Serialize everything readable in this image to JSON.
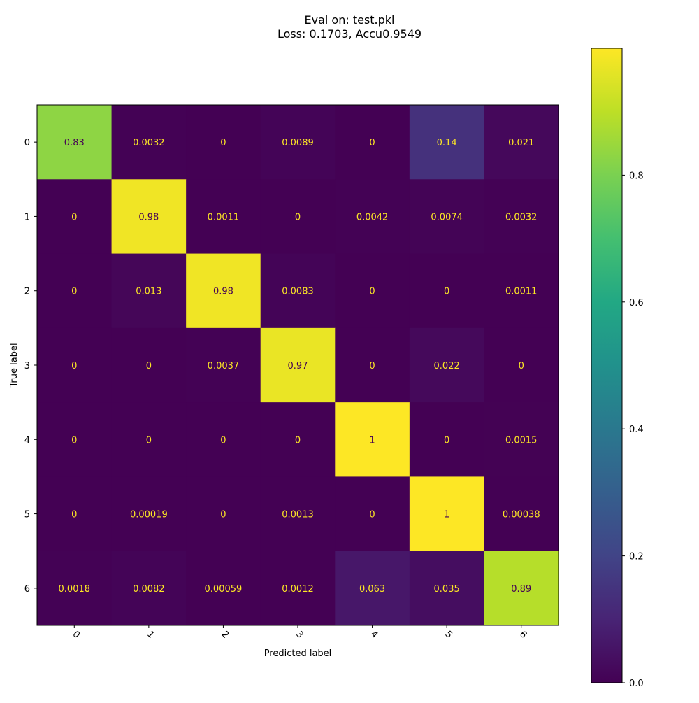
{
  "chart_data": {
    "type": "heatmap",
    "title_line1": "Eval on: test.pkl",
    "title_line2": "Loss: 0.1703, Accu0.9549",
    "xlabel": "Predicted label",
    "ylabel": "True label",
    "x_categories": [
      "0",
      "1",
      "2",
      "3",
      "4",
      "5",
      "6"
    ],
    "y_categories": [
      "0",
      "1",
      "2",
      "3",
      "4",
      "5",
      "6"
    ],
    "cells": [
      [
        {
          "v": 0.83,
          "t": "0.83"
        },
        {
          "v": 0.0032,
          "t": "0.0032"
        },
        {
          "v": 0,
          "t": "0"
        },
        {
          "v": 0.0089,
          "t": "0.0089"
        },
        {
          "v": 0,
          "t": "0"
        },
        {
          "v": 0.14,
          "t": "0.14"
        },
        {
          "v": 0.021,
          "t": "0.021"
        }
      ],
      [
        {
          "v": 0,
          "t": "0"
        },
        {
          "v": 0.98,
          "t": "0.98"
        },
        {
          "v": 0.0011,
          "t": "0.0011"
        },
        {
          "v": 0,
          "t": "0"
        },
        {
          "v": 0.0042,
          "t": "0.0042"
        },
        {
          "v": 0.0074,
          "t": "0.0074"
        },
        {
          "v": 0.0032,
          "t": "0.0032"
        }
      ],
      [
        {
          "v": 0,
          "t": "0"
        },
        {
          "v": 0.013,
          "t": "0.013"
        },
        {
          "v": 0.98,
          "t": "0.98"
        },
        {
          "v": 0.0083,
          "t": "0.0083"
        },
        {
          "v": 0,
          "t": "0"
        },
        {
          "v": 0,
          "t": "0"
        },
        {
          "v": 0.0011,
          "t": "0.0011"
        }
      ],
      [
        {
          "v": 0,
          "t": "0"
        },
        {
          "v": 0,
          "t": "0"
        },
        {
          "v": 0.0037,
          "t": "0.0037"
        },
        {
          "v": 0.97,
          "t": "0.97"
        },
        {
          "v": 0,
          "t": "0"
        },
        {
          "v": 0.022,
          "t": "0.022"
        },
        {
          "v": 0,
          "t": "0"
        }
      ],
      [
        {
          "v": 0,
          "t": "0"
        },
        {
          "v": 0,
          "t": "0"
        },
        {
          "v": 0,
          "t": "0"
        },
        {
          "v": 0,
          "t": "0"
        },
        {
          "v": 1,
          "t": "1"
        },
        {
          "v": 0,
          "t": "0"
        },
        {
          "v": 0.0015,
          "t": "0.0015"
        }
      ],
      [
        {
          "v": 0,
          "t": "0"
        },
        {
          "v": 0.00019,
          "t": "0.00019"
        },
        {
          "v": 0,
          "t": "0"
        },
        {
          "v": 0.0013,
          "t": "0.0013"
        },
        {
          "v": 0,
          "t": "0"
        },
        {
          "v": 1,
          "t": "1"
        },
        {
          "v": 0.00038,
          "t": "0.00038"
        }
      ],
      [
        {
          "v": 0.0018,
          "t": "0.0018"
        },
        {
          "v": 0.0082,
          "t": "0.0082"
        },
        {
          "v": 0.00059,
          "t": "0.00059"
        },
        {
          "v": 0.0012,
          "t": "0.0012"
        },
        {
          "v": 0.063,
          "t": "0.063"
        },
        {
          "v": 0.035,
          "t": "0.035"
        },
        {
          "v": 0.89,
          "t": "0.89"
        }
      ]
    ],
    "colorbar": {
      "colormap": "viridis",
      "range": [
        0,
        1
      ],
      "ticks": [
        {
          "v": 0.0,
          "t": "0.0"
        },
        {
          "v": 0.2,
          "t": "0.2"
        },
        {
          "v": 0.4,
          "t": "0.4"
        },
        {
          "v": 0.6,
          "t": "0.6"
        },
        {
          "v": 0.8,
          "t": "0.8"
        }
      ]
    },
    "text_color_light": "#fde725",
    "text_color_dark": "#440154"
  }
}
